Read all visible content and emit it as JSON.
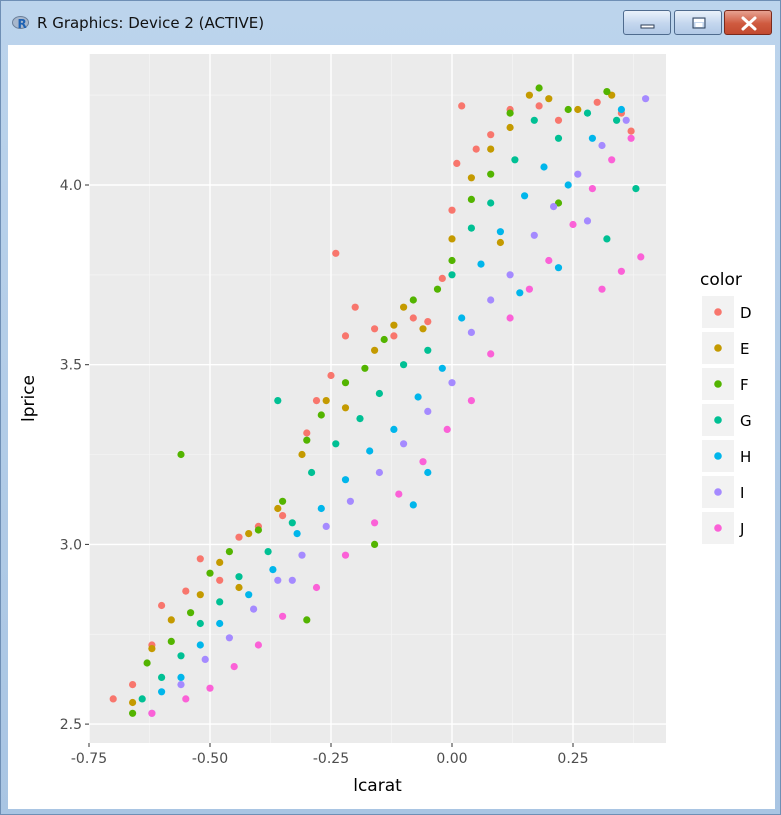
{
  "window": {
    "title": "R Graphics: Device 2 (ACTIVE)",
    "icon": "r-logo-icon",
    "controls": [
      "minimize-icon",
      "maximize-icon",
      "close-icon"
    ]
  },
  "chart_data": {
    "type": "scatter",
    "title": "",
    "xlabel": "lcarat",
    "ylabel": "lprice",
    "xlim": [
      -0.74,
      0.44
    ],
    "ylim": [
      2.5,
      4.3
    ],
    "x_ticks": [
      -0.75,
      -0.5,
      -0.25,
      0.0,
      0.25
    ],
    "x_tick_labels": [
      "-0.75",
      "-0.50",
      "-0.25",
      "0.00",
      "0.25"
    ],
    "y_ticks": [
      2.5,
      3.0,
      3.5,
      4.0
    ],
    "y_tick_labels": [
      "2.5",
      "3.0",
      "3.5",
      "4.0"
    ],
    "grid": true,
    "background": "#ebebeb",
    "legend": {
      "title": "color",
      "placement": "right",
      "entries": [
        "D",
        "E",
        "F",
        "G",
        "H",
        "I",
        "J"
      ],
      "colors": [
        "#f8766d",
        "#c49a00",
        "#53b400",
        "#00c094",
        "#00b6eb",
        "#a58aff",
        "#fb61d7"
      ]
    },
    "series": [
      {
        "name": "D",
        "color": "#f8766d",
        "points": [
          [
            -0.7,
            2.57
          ],
          [
            -0.66,
            2.61
          ],
          [
            -0.62,
            2.72
          ],
          [
            -0.6,
            2.83
          ],
          [
            -0.55,
            2.87
          ],
          [
            -0.52,
            2.96
          ],
          [
            -0.48,
            2.9
          ],
          [
            -0.44,
            3.02
          ],
          [
            -0.4,
            3.05
          ],
          [
            -0.35,
            3.08
          ],
          [
            -0.3,
            3.31
          ],
          [
            -0.28,
            3.4
          ],
          [
            -0.25,
            3.47
          ],
          [
            -0.22,
            3.58
          ],
          [
            -0.2,
            3.66
          ],
          [
            -0.16,
            3.6
          ],
          [
            -0.12,
            3.58
          ],
          [
            -0.08,
            3.63
          ],
          [
            -0.05,
            3.62
          ],
          [
            -0.02,
            3.74
          ],
          [
            0.0,
            3.93
          ],
          [
            0.01,
            4.06
          ],
          [
            0.05,
            4.1
          ],
          [
            0.08,
            4.14
          ],
          [
            0.12,
            4.21
          ],
          [
            0.18,
            4.22
          ],
          [
            0.22,
            4.18
          ],
          [
            0.3,
            4.23
          ],
          [
            0.35,
            4.2
          ],
          [
            0.37,
            4.15
          ],
          [
            -0.24,
            3.81
          ],
          [
            0.02,
            4.22
          ]
        ]
      },
      {
        "name": "E",
        "color": "#c49a00",
        "points": [
          [
            -0.66,
            2.56
          ],
          [
            -0.62,
            2.71
          ],
          [
            -0.58,
            2.79
          ],
          [
            -0.52,
            2.86
          ],
          [
            -0.48,
            2.95
          ],
          [
            -0.42,
            3.03
          ],
          [
            -0.36,
            3.1
          ],
          [
            -0.31,
            3.25
          ],
          [
            -0.26,
            3.4
          ],
          [
            -0.22,
            3.38
          ],
          [
            -0.16,
            3.54
          ],
          [
            -0.12,
            3.61
          ],
          [
            -0.06,
            3.6
          ],
          [
            0.0,
            3.85
          ],
          [
            0.04,
            4.02
          ],
          [
            0.08,
            4.1
          ],
          [
            0.12,
            4.16
          ],
          [
            0.16,
            4.25
          ],
          [
            0.2,
            4.24
          ],
          [
            0.26,
            4.21
          ],
          [
            0.33,
            4.25
          ],
          [
            -0.44,
            2.88
          ],
          [
            -0.1,
            3.66
          ],
          [
            0.1,
            3.84
          ]
        ]
      },
      {
        "name": "F",
        "color": "#53b400",
        "points": [
          [
            -0.66,
            2.53
          ],
          [
            -0.63,
            2.67
          ],
          [
            -0.58,
            2.73
          ],
          [
            -0.54,
            2.81
          ],
          [
            -0.5,
            2.92
          ],
          [
            -0.46,
            2.98
          ],
          [
            -0.4,
            3.04
          ],
          [
            -0.35,
            3.12
          ],
          [
            -0.3,
            3.29
          ],
          [
            -0.27,
            3.36
          ],
          [
            -0.22,
            3.45
          ],
          [
            -0.18,
            3.49
          ],
          [
            -0.14,
            3.57
          ],
          [
            -0.08,
            3.68
          ],
          [
            -0.03,
            3.71
          ],
          [
            0.0,
            3.79
          ],
          [
            0.04,
            3.96
          ],
          [
            0.08,
            4.03
          ],
          [
            0.12,
            4.2
          ],
          [
            0.18,
            4.27
          ],
          [
            0.24,
            4.21
          ],
          [
            0.32,
            4.26
          ],
          [
            -0.56,
            3.25
          ],
          [
            -0.16,
            3.0
          ],
          [
            -0.3,
            2.79
          ],
          [
            0.22,
            3.95
          ]
        ]
      },
      {
        "name": "G",
        "color": "#00c094",
        "points": [
          [
            -0.64,
            2.57
          ],
          [
            -0.6,
            2.63
          ],
          [
            -0.56,
            2.69
          ],
          [
            -0.52,
            2.78
          ],
          [
            -0.48,
            2.84
          ],
          [
            -0.44,
            2.91
          ],
          [
            -0.38,
            2.98
          ],
          [
            -0.33,
            3.06
          ],
          [
            -0.29,
            3.2
          ],
          [
            -0.24,
            3.28
          ],
          [
            -0.19,
            3.35
          ],
          [
            -0.15,
            3.42
          ],
          [
            -0.1,
            3.5
          ],
          [
            -0.05,
            3.54
          ],
          [
            0.0,
            3.75
          ],
          [
            0.04,
            3.88
          ],
          [
            0.08,
            3.95
          ],
          [
            0.13,
            4.07
          ],
          [
            0.17,
            4.18
          ],
          [
            0.22,
            4.13
          ],
          [
            0.28,
            4.2
          ],
          [
            0.34,
            4.18
          ],
          [
            -0.36,
            3.4
          ],
          [
            0.38,
            3.99
          ],
          [
            0.32,
            3.85
          ]
        ]
      },
      {
        "name": "H",
        "color": "#00b6eb",
        "points": [
          [
            -0.6,
            2.59
          ],
          [
            -0.56,
            2.63
          ],
          [
            -0.52,
            2.72
          ],
          [
            -0.48,
            2.78
          ],
          [
            -0.42,
            2.86
          ],
          [
            -0.37,
            2.93
          ],
          [
            -0.32,
            3.03
          ],
          [
            -0.27,
            3.1
          ],
          [
            -0.22,
            3.18
          ],
          [
            -0.17,
            3.26
          ],
          [
            -0.12,
            3.32
          ],
          [
            -0.07,
            3.41
          ],
          [
            -0.02,
            3.49
          ],
          [
            0.02,
            3.63
          ],
          [
            0.06,
            3.78
          ],
          [
            0.1,
            3.87
          ],
          [
            0.15,
            3.97
          ],
          [
            0.19,
            4.05
          ],
          [
            0.24,
            4.0
          ],
          [
            0.29,
            4.13
          ],
          [
            0.35,
            4.21
          ],
          [
            -0.05,
            3.2
          ],
          [
            0.22,
            3.77
          ],
          [
            0.14,
            3.7
          ],
          [
            -0.08,
            3.11
          ]
        ]
      },
      {
        "name": "I",
        "color": "#a58aff",
        "points": [
          [
            -0.62,
            2.53
          ],
          [
            -0.56,
            2.61
          ],
          [
            -0.51,
            2.68
          ],
          [
            -0.46,
            2.74
          ],
          [
            -0.41,
            2.82
          ],
          [
            -0.36,
            2.9
          ],
          [
            -0.31,
            2.97
          ],
          [
            -0.26,
            3.05
          ],
          [
            -0.21,
            3.12
          ],
          [
            -0.15,
            3.2
          ],
          [
            -0.1,
            3.28
          ],
          [
            -0.05,
            3.37
          ],
          [
            0.0,
            3.45
          ],
          [
            0.04,
            3.59
          ],
          [
            0.08,
            3.68
          ],
          [
            0.12,
            3.75
          ],
          [
            0.17,
            3.86
          ],
          [
            0.21,
            3.94
          ],
          [
            0.26,
            4.03
          ],
          [
            0.31,
            4.11
          ],
          [
            0.36,
            4.18
          ],
          [
            0.4,
            4.24
          ],
          [
            0.28,
            3.9
          ],
          [
            -0.33,
            2.9
          ]
        ]
      },
      {
        "name": "J",
        "color": "#fb61d7",
        "points": [
          [
            -0.62,
            2.53
          ],
          [
            -0.55,
            2.57
          ],
          [
            -0.5,
            2.6
          ],
          [
            -0.45,
            2.66
          ],
          [
            -0.4,
            2.72
          ],
          [
            -0.35,
            2.8
          ],
          [
            -0.28,
            2.88
          ],
          [
            -0.22,
            2.97
          ],
          [
            -0.16,
            3.06
          ],
          [
            -0.11,
            3.14
          ],
          [
            -0.06,
            3.23
          ],
          [
            -0.01,
            3.32
          ],
          [
            0.04,
            3.4
          ],
          [
            0.08,
            3.53
          ],
          [
            0.12,
            3.63
          ],
          [
            0.16,
            3.71
          ],
          [
            0.2,
            3.79
          ],
          [
            0.25,
            3.89
          ],
          [
            0.29,
            3.99
          ],
          [
            0.33,
            4.07
          ],
          [
            0.37,
            4.13
          ],
          [
            0.39,
            3.8
          ],
          [
            0.31,
            3.71
          ],
          [
            0.35,
            3.76
          ]
        ]
      }
    ]
  }
}
